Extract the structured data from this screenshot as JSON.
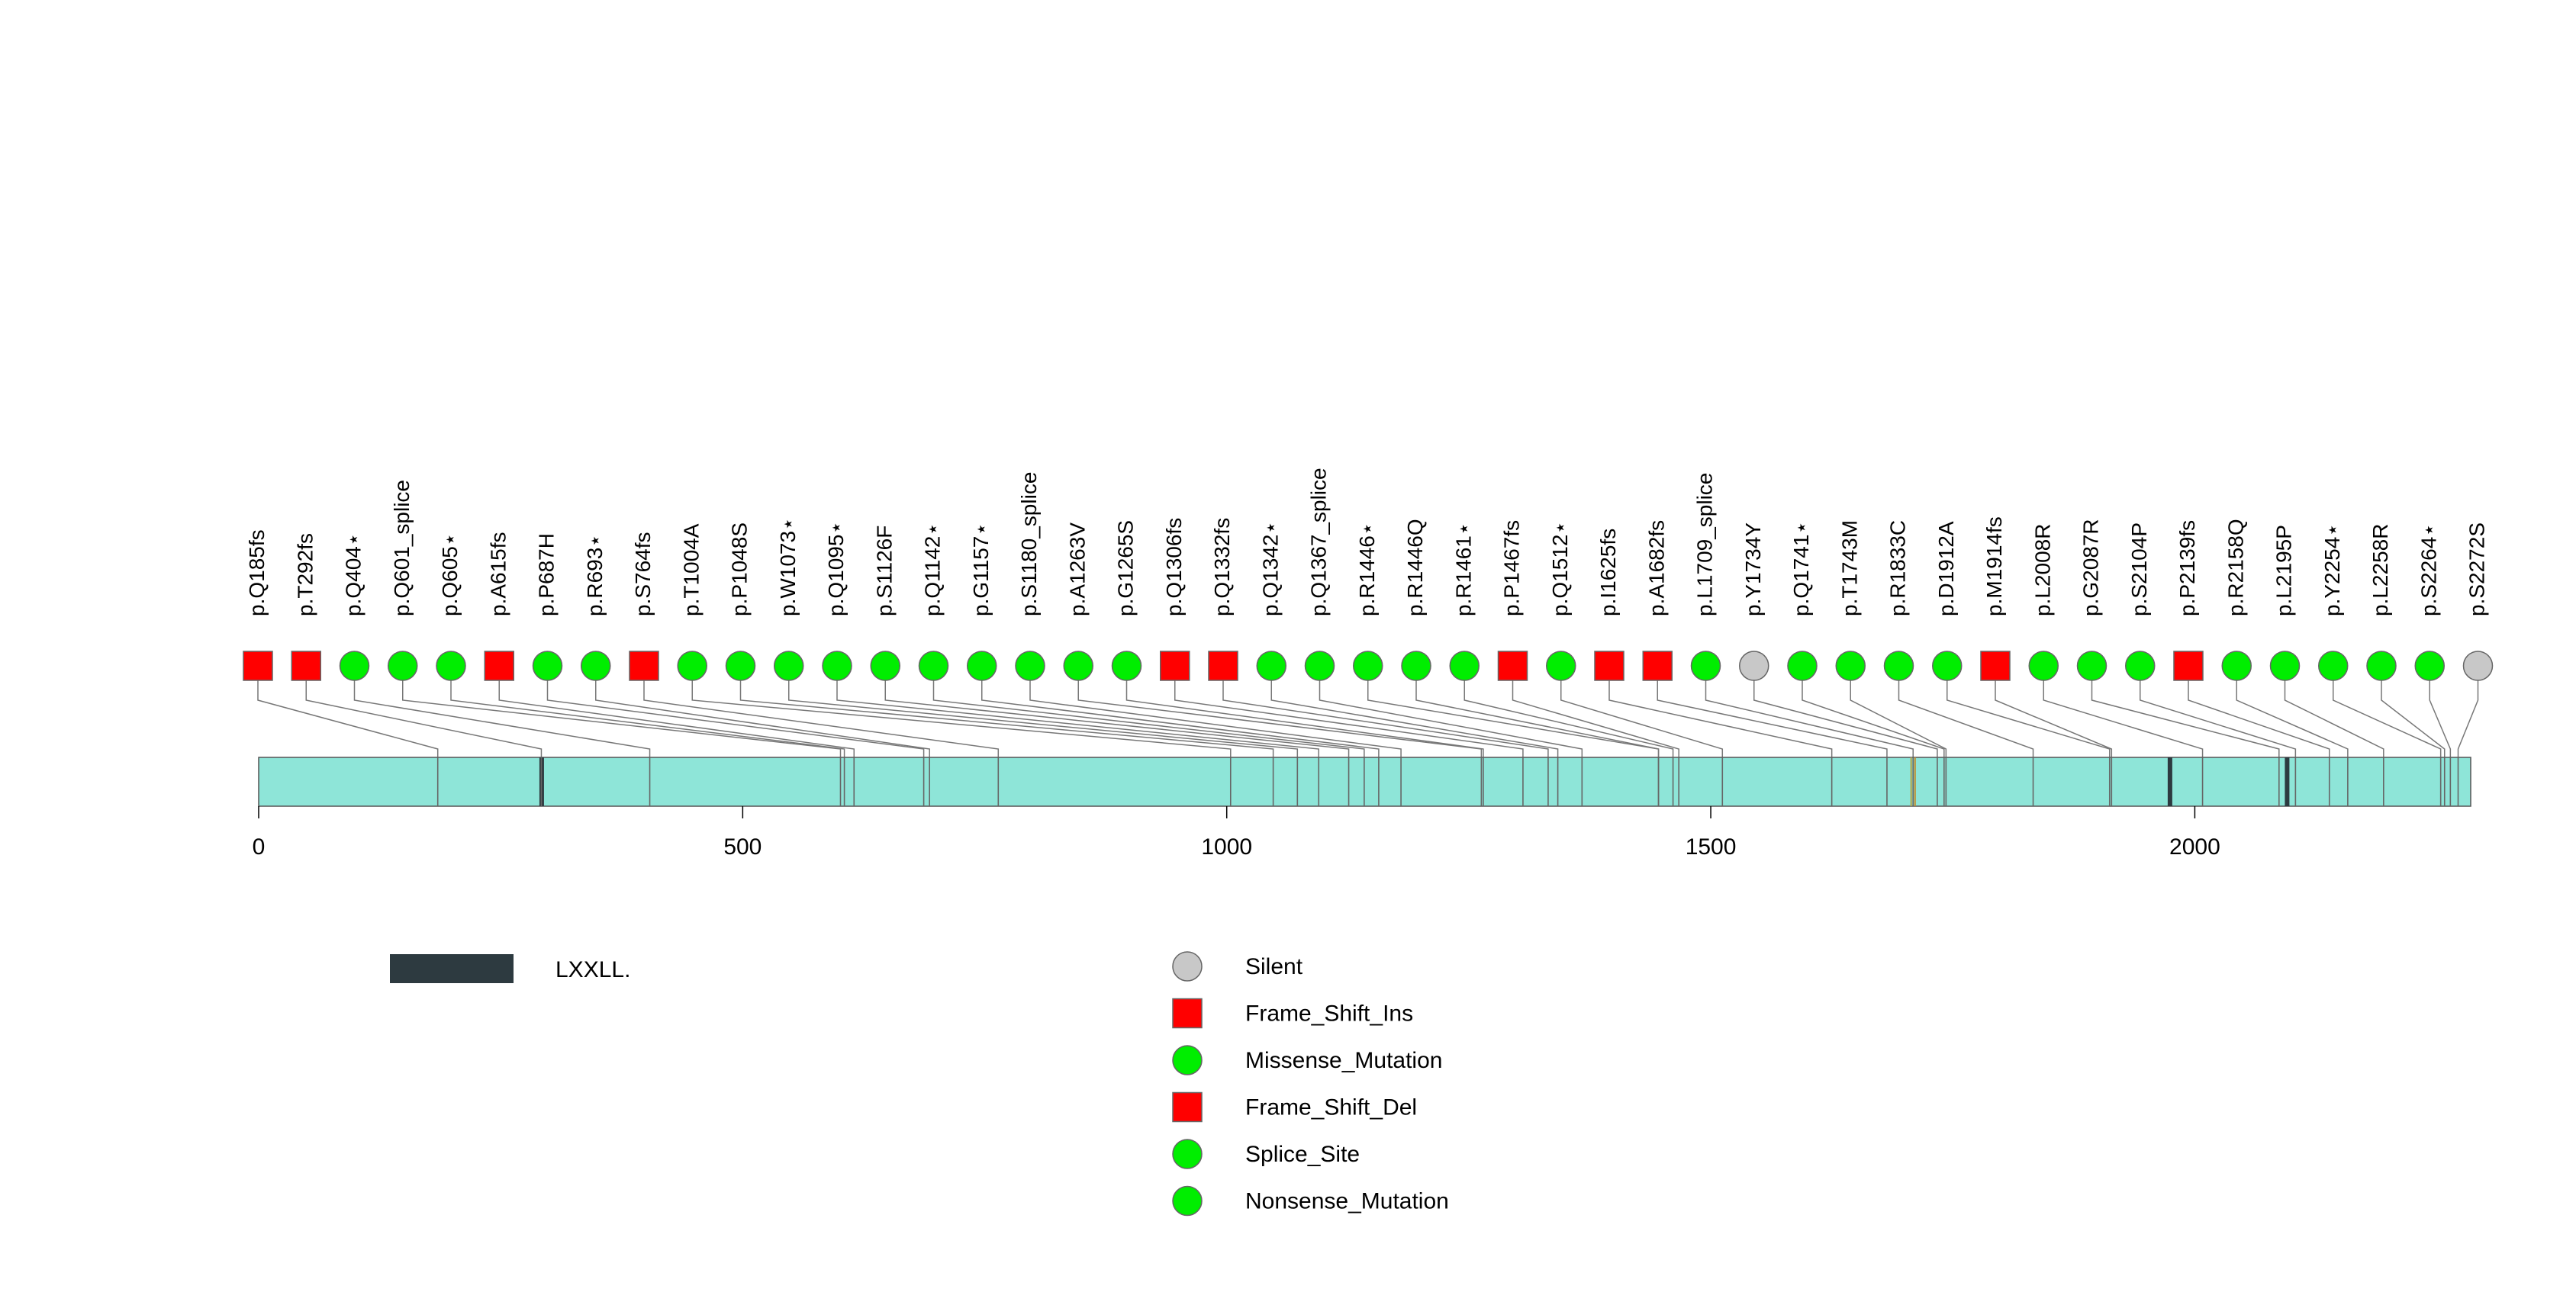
{
  "chart_data": {
    "type": "lollipop",
    "protein_length": 2285,
    "x_ticks": [
      0,
      500,
      1000,
      1500,
      2000
    ],
    "colors": {
      "protein_bar": "#8ee5d8",
      "domain": "#2d3a40",
      "Silent": "#c8c8c8",
      "Frame_Shift_Ins": "#ff0000",
      "Missense_Mutation": "#00ee00",
      "Frame_Shift_Del": "#ff0000",
      "Splice_Site": "#00ee00",
      "Nonsense_Mutation": "#00ee00"
    },
    "domains": [
      {
        "name": "LXXLL.",
        "start": 290,
        "end": 292
      },
      {
        "name": "LXXLL.",
        "start": 1972,
        "end": 1976
      },
      {
        "name": "LXXLL.",
        "start": 2093,
        "end": 2097
      }
    ],
    "extra_tick_positions": [
      1707,
      1711
    ],
    "mutations": [
      {
        "label": "p.Q185fs",
        "position": 185,
        "type": "Frame_Shift_Ins"
      },
      {
        "label": "p.T292fs",
        "position": 292,
        "type": "Frame_Shift_Ins"
      },
      {
        "label": "p.Q404⋆",
        "position": 404,
        "type": "Nonsense_Mutation"
      },
      {
        "label": "p.Q601_splice",
        "position": 601,
        "type": "Splice_Site"
      },
      {
        "label": "p.Q605⋆",
        "position": 605,
        "type": "Nonsense_Mutation"
      },
      {
        "label": "p.A615fs",
        "position": 615,
        "type": "Frame_Shift_Del"
      },
      {
        "label": "p.P687H",
        "position": 687,
        "type": "Missense_Mutation"
      },
      {
        "label": "p.R693⋆",
        "position": 693,
        "type": "Nonsense_Mutation"
      },
      {
        "label": "p.S764fs",
        "position": 764,
        "type": "Frame_Shift_Ins"
      },
      {
        "label": "p.T1004A",
        "position": 1004,
        "type": "Missense_Mutation"
      },
      {
        "label": "p.P1048S",
        "position": 1048,
        "type": "Missense_Mutation"
      },
      {
        "label": "p.W1073⋆",
        "position": 1073,
        "type": "Nonsense_Mutation"
      },
      {
        "label": "p.Q1095⋆",
        "position": 1095,
        "type": "Nonsense_Mutation"
      },
      {
        "label": "p.S1126F",
        "position": 1126,
        "type": "Missense_Mutation"
      },
      {
        "label": "p.Q1142⋆",
        "position": 1142,
        "type": "Nonsense_Mutation"
      },
      {
        "label": "p.G1157⋆",
        "position": 1157,
        "type": "Nonsense_Mutation"
      },
      {
        "label": "p.S1180_splice",
        "position": 1180,
        "type": "Splice_Site"
      },
      {
        "label": "p.A1263V",
        "position": 1263,
        "type": "Missense_Mutation"
      },
      {
        "label": "p.G1265S",
        "position": 1265,
        "type": "Missense_Mutation"
      },
      {
        "label": "p.Q1306fs",
        "position": 1306,
        "type": "Frame_Shift_Del"
      },
      {
        "label": "p.Q1332fs",
        "position": 1332,
        "type": "Frame_Shift_Del"
      },
      {
        "label": "p.Q1342⋆",
        "position": 1342,
        "type": "Nonsense_Mutation"
      },
      {
        "label": "p.Q1367_splice",
        "position": 1367,
        "type": "Splice_Site"
      },
      {
        "label": "p.R1446⋆",
        "position": 1446,
        "type": "Nonsense_Mutation"
      },
      {
        "label": "p.R1446Q",
        "position": 1446,
        "type": "Missense_Mutation"
      },
      {
        "label": "p.R1461⋆",
        "position": 1461,
        "type": "Nonsense_Mutation"
      },
      {
        "label": "p.P1467fs",
        "position": 1467,
        "type": "Frame_Shift_Del"
      },
      {
        "label": "p.Q1512⋆",
        "position": 1512,
        "type": "Nonsense_Mutation"
      },
      {
        "label": "p.I1625fs",
        "position": 1625,
        "type": "Frame_Shift_Del"
      },
      {
        "label": "p.A1682fs",
        "position": 1682,
        "type": "Frame_Shift_Del"
      },
      {
        "label": "p.L1709_splice",
        "position": 1709,
        "type": "Splice_Site"
      },
      {
        "label": "p.Y1734Y",
        "position": 1734,
        "type": "Silent"
      },
      {
        "label": "p.Q1741⋆",
        "position": 1741,
        "type": "Nonsense_Mutation"
      },
      {
        "label": "p.T1743M",
        "position": 1743,
        "type": "Missense_Mutation"
      },
      {
        "label": "p.R1833C",
        "position": 1833,
        "type": "Missense_Mutation"
      },
      {
        "label": "p.D1912A",
        "position": 1912,
        "type": "Missense_Mutation"
      },
      {
        "label": "p.M1914fs",
        "position": 1914,
        "type": "Frame_Shift_Del"
      },
      {
        "label": "p.L2008R",
        "position": 2008,
        "type": "Missense_Mutation"
      },
      {
        "label": "p.G2087R",
        "position": 2087,
        "type": "Missense_Mutation"
      },
      {
        "label": "p.S2104P",
        "position": 2104,
        "type": "Missense_Mutation"
      },
      {
        "label": "p.P2139fs",
        "position": 2139,
        "type": "Frame_Shift_Del"
      },
      {
        "label": "p.R2158Q",
        "position": 2158,
        "type": "Missense_Mutation"
      },
      {
        "label": "p.L2195P",
        "position": 2195,
        "type": "Missense_Mutation"
      },
      {
        "label": "p.Y2254⋆",
        "position": 2254,
        "type": "Nonsense_Mutation"
      },
      {
        "label": "p.L2258R",
        "position": 2258,
        "type": "Missense_Mutation"
      },
      {
        "label": "p.S2264⋆",
        "position": 2264,
        "type": "Nonsense_Mutation"
      },
      {
        "label": "p.S2272S",
        "position": 2272,
        "type": "Silent"
      }
    ],
    "legend_domains": [
      {
        "name": "LXXLL."
      }
    ],
    "legend_mutations": [
      {
        "name": "Silent",
        "shape": "circle"
      },
      {
        "name": "Frame_Shift_Ins",
        "shape": "square"
      },
      {
        "name": "Missense_Mutation",
        "shape": "circle"
      },
      {
        "name": "Frame_Shift_Del",
        "shape": "square"
      },
      {
        "name": "Splice_Site",
        "shape": "circle"
      },
      {
        "name": "Nonsense_Mutation",
        "shape": "circle"
      }
    ]
  }
}
